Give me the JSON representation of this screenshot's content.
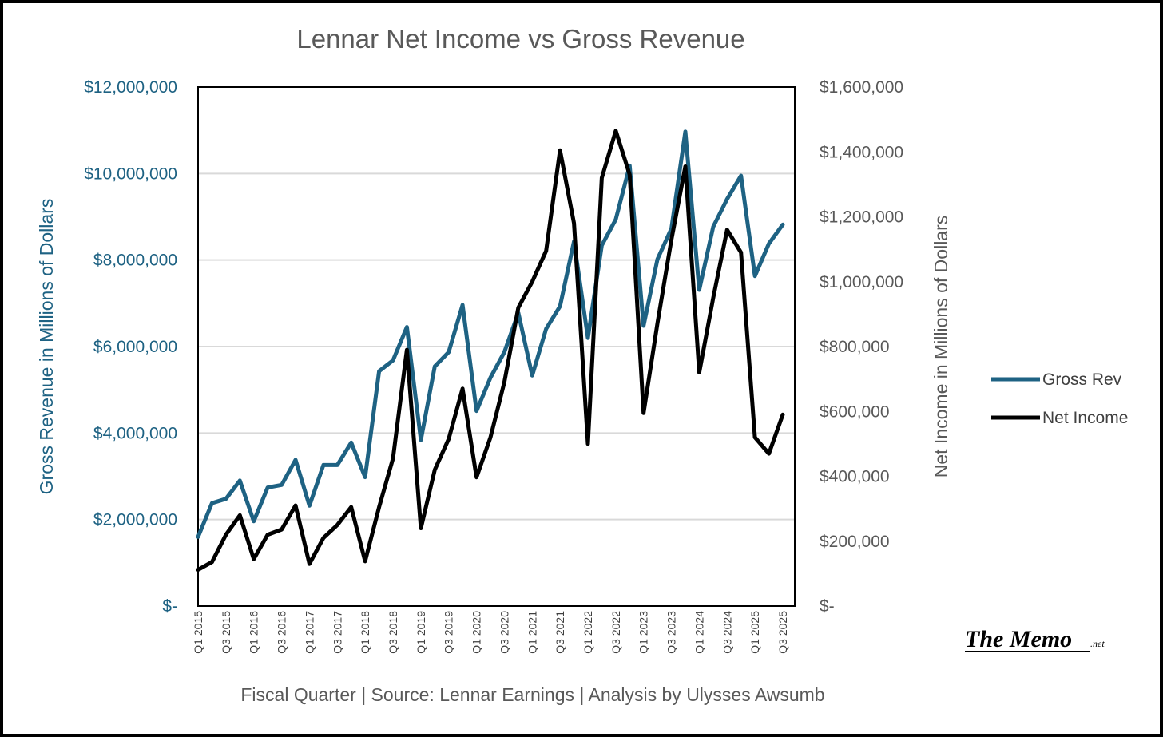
{
  "chart_data": {
    "type": "line",
    "title": "Lennar Net Income vs Gross Revenue",
    "xlabel": "Fiscal Quarter | Source: Lennar Earnings | Analysis by Ulysses Awsumb",
    "ylabel": "Gross Revenue in Millions of Dollars",
    "y2label": "Net Income in Millions of Dollars",
    "ylim": [
      0,
      12000000
    ],
    "y2lim": [
      0,
      1600000
    ],
    "grid": true,
    "legend_position": "right",
    "y_ticks": [
      "$-",
      "$2,000,000",
      "$4,000,000",
      "$6,000,000",
      "$8,000,000",
      "$10,000,000",
      "$12,000,000"
    ],
    "y2_ticks": [
      "$-",
      "$200,000",
      "$400,000",
      "$600,000",
      "$800,000",
      "$1,000,000",
      "$1,200,000",
      "$1,400,000",
      "$1,600,000"
    ],
    "tick_labels": [
      "Q1 2015",
      "Q3 2015",
      "Q1 2016",
      "Q3 2016",
      "Q1 2017",
      "Q3 2017",
      "Q1 2018",
      "Q3 2018",
      "Q1 2019",
      "Q3 2019",
      "Q1 2020",
      "Q3 2020",
      "Q1 2021",
      "Q3 2021",
      "Q1 2022",
      "Q3 2022",
      "Q1 2023",
      "Q3 2023",
      "Q1 2024",
      "Q3 2024",
      "Q1 2025",
      "Q3 2025"
    ],
    "x": [
      "Q1 2015",
      "Q2 2015",
      "Q3 2015",
      "Q4 2015",
      "Q1 2016",
      "Q2 2016",
      "Q3 2016",
      "Q4 2016",
      "Q1 2017",
      "Q2 2017",
      "Q3 2017",
      "Q4 2017",
      "Q1 2018",
      "Q2 2018",
      "Q3 2018",
      "Q4 2018",
      "Q1 2019",
      "Q2 2019",
      "Q3 2019",
      "Q4 2019",
      "Q1 2020",
      "Q2 2020",
      "Q3 2020",
      "Q4 2020",
      "Q1 2021",
      "Q2 2021",
      "Q3 2021",
      "Q4 2021",
      "Q1 2022",
      "Q2 2022",
      "Q3 2022",
      "Q4 2022",
      "Q1 2023",
      "Q2 2023",
      "Q3 2023",
      "Q4 2023",
      "Q1 2024",
      "Q2 2024",
      "Q3 2024",
      "Q4 2024",
      "Q1 2025",
      "Q2 2025",
      "Q3 2025"
    ],
    "series": [
      {
        "name": "Gross Rev",
        "color": "#1e6283",
        "axis": "left",
        "values": [
          1600000,
          2380000,
          2480000,
          2900000,
          1960000,
          2740000,
          2800000,
          3380000,
          2320000,
          3260000,
          3260000,
          3780000,
          2980000,
          5430000,
          5680000,
          6450000,
          3840000,
          5540000,
          5870000,
          6960000,
          4510000,
          5280000,
          5870000,
          6780000,
          5330000,
          6410000,
          6930000,
          8430000,
          6200000,
          8340000,
          8940000,
          10180000,
          6480000,
          8020000,
          8730000,
          10970000,
          7310000,
          8770000,
          9410000,
          9950000,
          7630000,
          8380000,
          8820000
        ]
      },
      {
        "name": "Net Income",
        "color": "#000000",
        "axis": "right",
        "values": [
          112000,
          136000,
          220000,
          280000,
          145000,
          220000,
          236000,
          310000,
          130000,
          210000,
          250000,
          305000,
          138000,
          305000,
          455000,
          790000,
          240000,
          420000,
          515000,
          670000,
          397000,
          520000,
          690000,
          920000,
          1000000,
          1095000,
          1405000,
          1180000,
          500000,
          1320000,
          1465000,
          1330000,
          595000,
          872000,
          1130000,
          1355000,
          720000,
          950000,
          1160000,
          1090000,
          520000,
          470000,
          590000
        ]
      }
    ]
  },
  "logo": {
    "text": "The Memo",
    "suffix": ".net"
  }
}
